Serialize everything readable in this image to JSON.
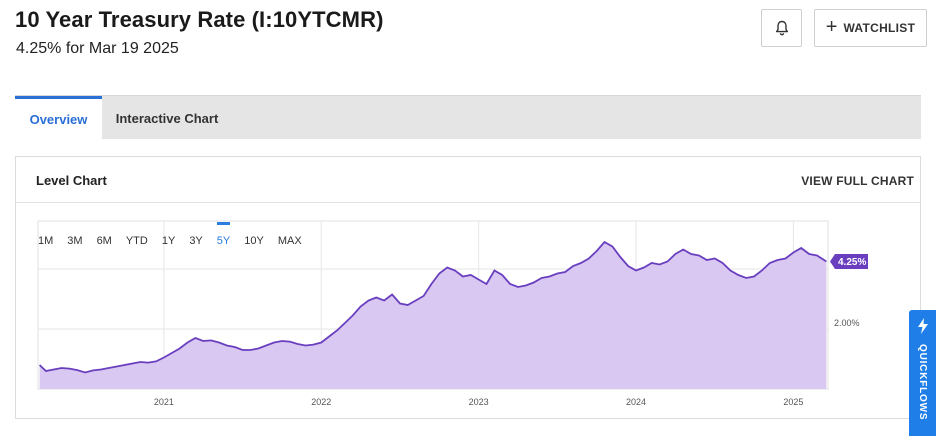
{
  "header": {
    "title": "10 Year Treasury Rate (I:10YTCMR)",
    "subtitle": "4.25% for Mar 19 2025",
    "watchlist_label": "WATCHLIST"
  },
  "tabs": [
    {
      "label": "Overview",
      "active": true
    },
    {
      "label": "Interactive Chart",
      "active": false
    }
  ],
  "panel": {
    "title": "Level Chart",
    "view_full_label": "VIEW FULL CHART"
  },
  "ranges": [
    "1M",
    "3M",
    "6M",
    "YTD",
    "1Y",
    "3Y",
    "5Y",
    "10Y",
    "MAX"
  ],
  "active_range": "5Y",
  "quickflows_label": "QUICKFLOWS",
  "colors": {
    "accent": "#2a7de1",
    "line": "#6a3fbf",
    "fill": "#d9c8f2",
    "badge": "#6a3fbf"
  },
  "chart_data": {
    "type": "area",
    "x_ticks": [
      "2021",
      "2022",
      "2023",
      "2024",
      "2025"
    ],
    "y_tick_label": "2.00%",
    "current_value_label": "4.25%",
    "xlim": [
      2020.2,
      2025.22
    ],
    "ylim": [
      0.0,
      5.6
    ],
    "grid": true,
    "series": [
      {
        "x": [
          2020.21,
          2020.25,
          2020.3,
          2020.35,
          2020.4,
          2020.45,
          2020.5,
          2020.55,
          2020.6,
          2020.65,
          2020.7,
          2020.75,
          2020.8,
          2020.85,
          2020.9,
          2020.95,
          2021.0,
          2021.05,
          2021.1,
          2021.15,
          2021.2,
          2021.25,
          2021.3,
          2021.35,
          2021.4,
          2021.45,
          2021.5,
          2021.55,
          2021.6,
          2021.65,
          2021.7,
          2021.75,
          2021.8,
          2021.85,
          2021.9,
          2021.95,
          2022.0,
          2022.05,
          2022.1,
          2022.15,
          2022.2,
          2022.25,
          2022.3,
          2022.35,
          2022.4,
          2022.45,
          2022.5,
          2022.55,
          2022.6,
          2022.65,
          2022.7,
          2022.75,
          2022.8,
          2022.85,
          2022.9,
          2022.95,
          2023.0,
          2023.05,
          2023.1,
          2023.15,
          2023.2,
          2023.25,
          2023.3,
          2023.35,
          2023.4,
          2023.45,
          2023.5,
          2023.55,
          2023.6,
          2023.65,
          2023.7,
          2023.75,
          2023.8,
          2023.85,
          2023.9,
          2023.95,
          2024.0,
          2024.05,
          2024.1,
          2024.15,
          2024.2,
          2024.25,
          2024.3,
          2024.35,
          2024.4,
          2024.45,
          2024.5,
          2024.55,
          2024.6,
          2024.65,
          2024.7,
          2024.75,
          2024.8,
          2024.85,
          2024.9,
          2024.95,
          2025.0,
          2025.05,
          2025.1,
          2025.15,
          2025.21
        ],
        "values": [
          0.8,
          0.6,
          0.65,
          0.7,
          0.68,
          0.63,
          0.55,
          0.62,
          0.65,
          0.7,
          0.75,
          0.8,
          0.85,
          0.9,
          0.88,
          0.92,
          1.05,
          1.2,
          1.35,
          1.55,
          1.7,
          1.6,
          1.62,
          1.55,
          1.45,
          1.4,
          1.3,
          1.3,
          1.35,
          1.45,
          1.55,
          1.6,
          1.58,
          1.5,
          1.45,
          1.48,
          1.55,
          1.75,
          1.95,
          2.2,
          2.45,
          2.75,
          2.95,
          3.05,
          2.95,
          3.15,
          2.85,
          2.8,
          2.95,
          3.1,
          3.5,
          3.85,
          4.05,
          3.95,
          3.75,
          3.8,
          3.65,
          3.5,
          3.95,
          3.8,
          3.5,
          3.4,
          3.45,
          3.55,
          3.7,
          3.75,
          3.85,
          3.9,
          4.1,
          4.2,
          4.35,
          4.6,
          4.9,
          4.75,
          4.4,
          4.1,
          3.95,
          4.05,
          4.2,
          4.15,
          4.25,
          4.5,
          4.65,
          4.5,
          4.45,
          4.3,
          4.35,
          4.2,
          3.95,
          3.8,
          3.7,
          3.75,
          3.95,
          4.2,
          4.3,
          4.35,
          4.55,
          4.7,
          4.5,
          4.45,
          4.25
        ]
      }
    ]
  }
}
